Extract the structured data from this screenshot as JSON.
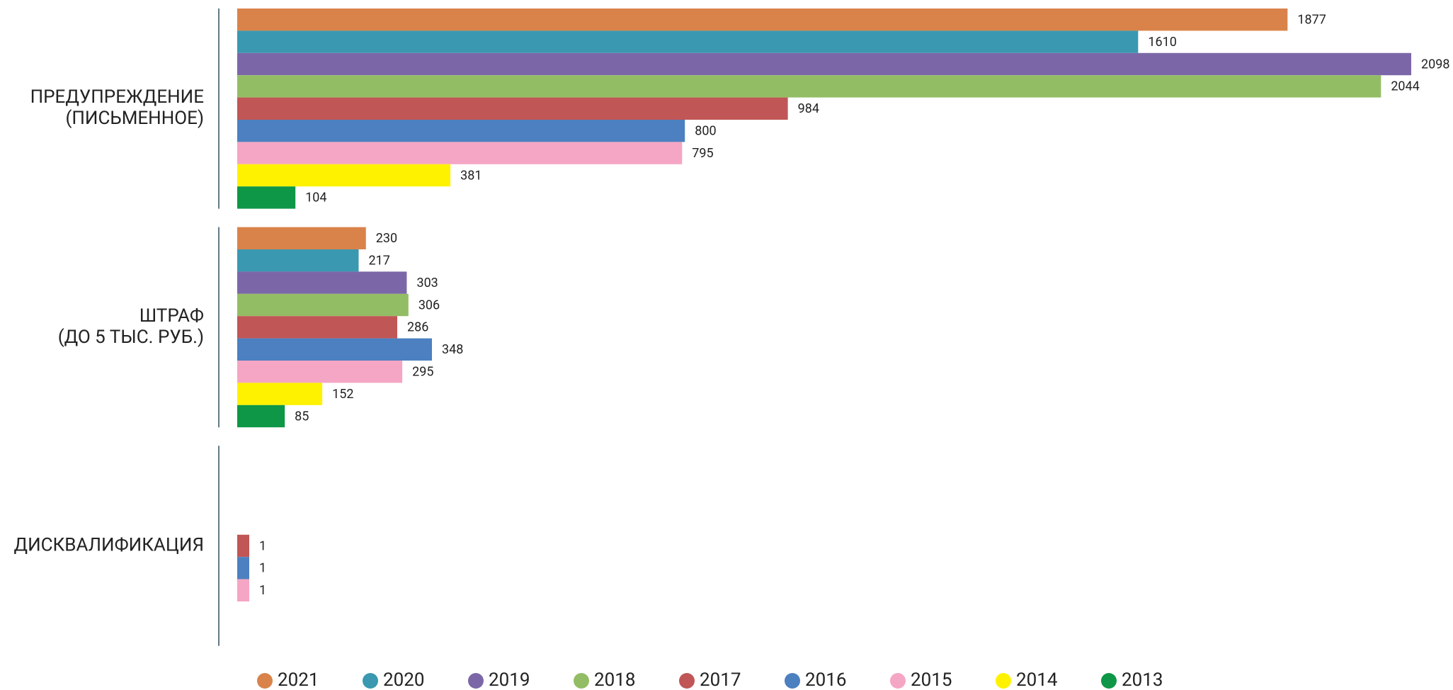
{
  "chart_data": {
    "type": "bar",
    "orientation": "horizontal",
    "categories": [
      [
        "ПРЕДУПРЕЖДЕНИЕ",
        "(ПИСЬМЕННОЕ)"
      ],
      [
        "ШТРАФ",
        "(ДО 5 ТЫС. РУБ.)"
      ],
      [
        "ДИСКВАЛИФИКАЦИЯ"
      ]
    ],
    "series": [
      {
        "name": "2021",
        "color": "#d9834a",
        "values": [
          1877,
          230,
          null
        ]
      },
      {
        "name": "2020",
        "color": "#3a98b0",
        "values": [
          1610,
          217,
          null
        ]
      },
      {
        "name": "2019",
        "color": "#7b67a8",
        "values": [
          2098,
          303,
          null
        ]
      },
      {
        "name": "2018",
        "color": "#93bd65",
        "values": [
          2044,
          306,
          null
        ]
      },
      {
        "name": "2017",
        "color": "#c05656",
        "values": [
          984,
          286,
          1
        ]
      },
      {
        "name": "2016",
        "color": "#4c80c0",
        "values": [
          800,
          348,
          1
        ]
      },
      {
        "name": "2015",
        "color": "#f5a6c4",
        "values": [
          795,
          295,
          1
        ]
      },
      {
        "name": "2014",
        "color": "#fff200",
        "values": [
          381,
          152,
          null
        ]
      },
      {
        "name": "2013",
        "color": "#0e9746",
        "values": [
          104,
          85,
          null
        ]
      }
    ],
    "legend": "bottom"
  }
}
